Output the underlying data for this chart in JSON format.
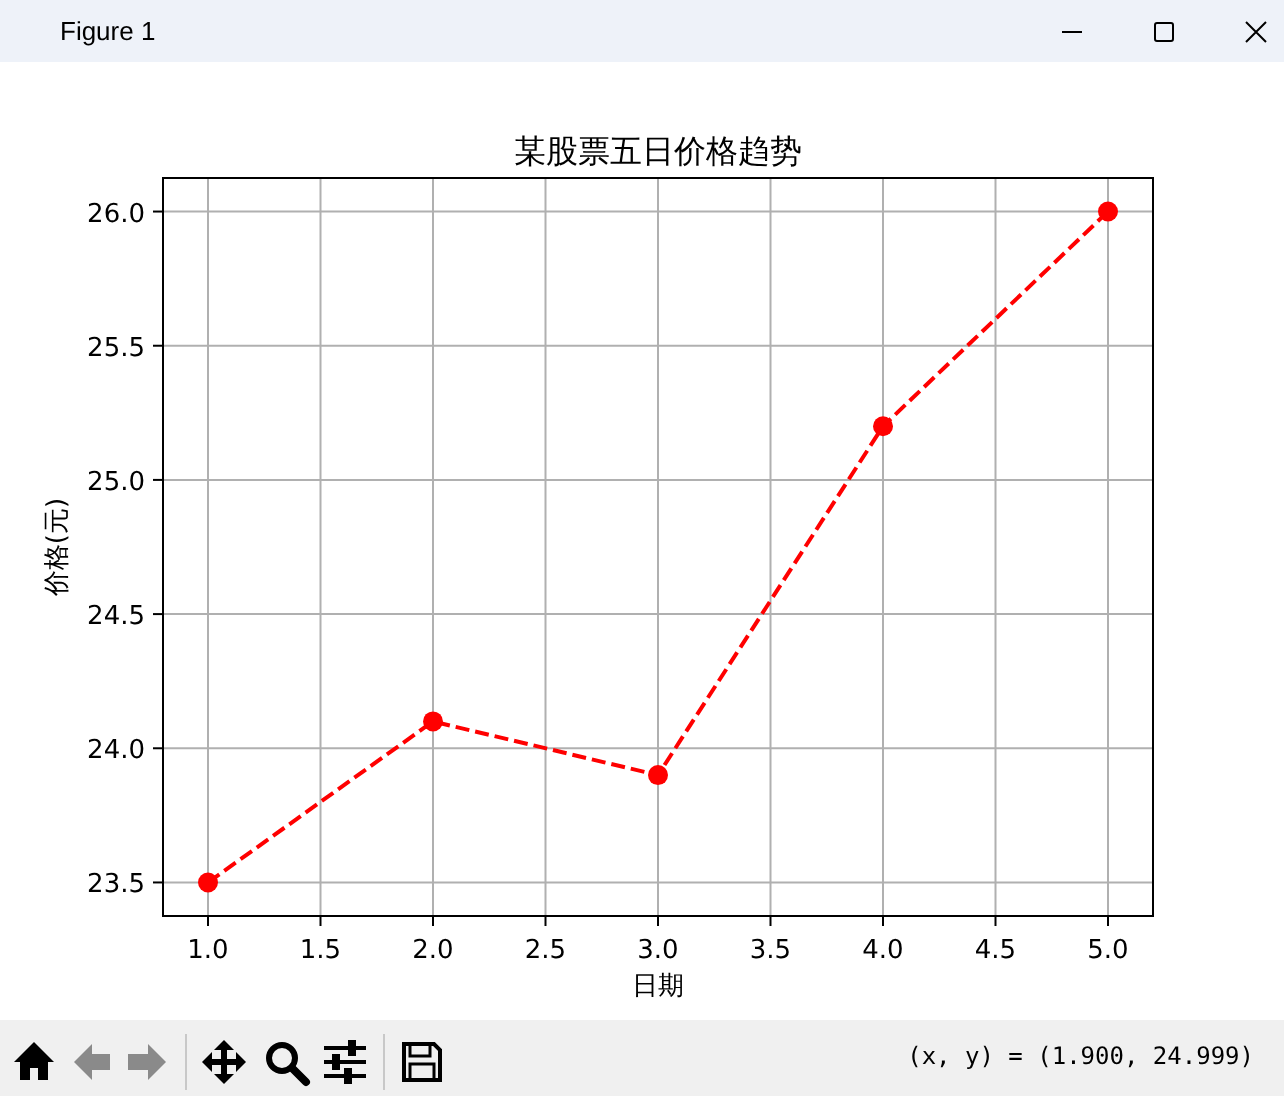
{
  "chart_data": {
    "type": "line",
    "title": "某股票五日价格趋势",
    "xlabel": "日期",
    "ylabel": "价格(元)",
    "x": [
      1,
      2,
      3,
      4,
      5
    ],
    "series": [
      {
        "color": "#ff0000",
        "values": [
          23.5,
          24.1,
          23.9,
          25.2,
          26.0
        ]
      }
    ],
    "xlim": [
      0.8,
      5.2
    ],
    "ylim": [
      23.375,
      26.125
    ],
    "xticks": [
      {
        "value": 1,
        "label": "1.0"
      },
      1.5,
      {
        "value": 2,
        "label": "2.0"
      },
      2.5,
      {
        "value": 3,
        "label": "3.0"
      },
      3.5,
      {
        "value": 4,
        "label": "4.0"
      },
      4.5,
      {
        "value": 5,
        "label": "5.0"
      }
    ],
    "yticks": [
      23.5,
      {
        "value": 24,
        "label": "24.0"
      },
      24.5,
      {
        "value": 25,
        "label": "25.0"
      },
      25.5,
      {
        "value": 26,
        "label": "26.0"
      }
    ],
    "grid": true,
    "marker": "circle",
    "line_style": "dashed",
    "annotations": [
      "Figure 1",
      "(x, y) = (1.900, 24.999)"
    ]
  }
}
